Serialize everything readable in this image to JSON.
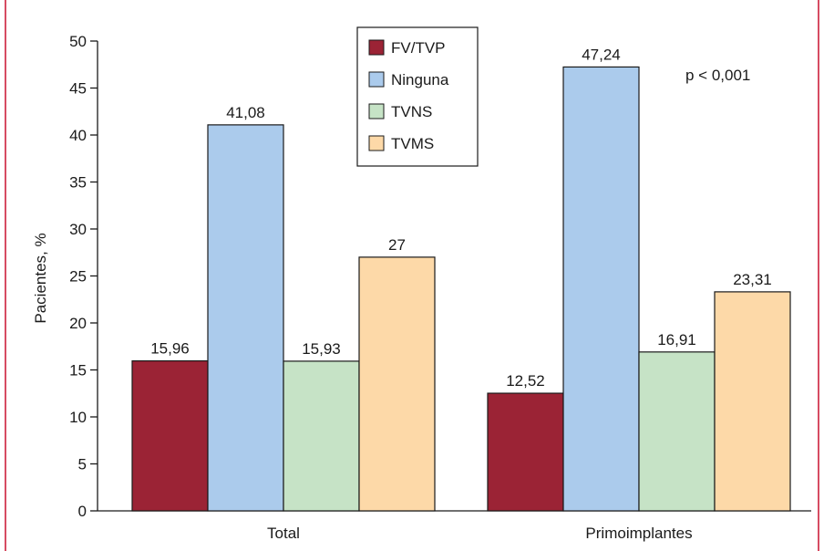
{
  "chart_data": {
    "type": "bar",
    "title": "",
    "xlabel": "",
    "ylabel": "Pacientes, %",
    "ylim": [
      0,
      50
    ],
    "yticks": [
      0,
      5,
      10,
      15,
      20,
      25,
      30,
      35,
      40,
      45,
      50
    ],
    "categories": [
      "Total",
      "Primoimplantes"
    ],
    "series": [
      {
        "name": "FV/TVP",
        "color": "#9b2335",
        "values": [
          15.96,
          12.52
        ],
        "labels": [
          "15,96",
          "12,52"
        ]
      },
      {
        "name": "Ninguna",
        "color": "#abcbec",
        "values": [
          41.08,
          47.24
        ],
        "labels": [
          "41,08",
          "47,24"
        ]
      },
      {
        "name": "TVNS",
        "color": "#c6e3c6",
        "values": [
          15.93,
          16.91
        ],
        "labels": [
          "15,93",
          "16,91"
        ]
      },
      {
        "name": "TVMS",
        "color": "#fdd9a8",
        "values": [
          27,
          23.31
        ],
        "labels": [
          "27",
          "23,31"
        ]
      }
    ],
    "legend_position": "top-center",
    "annotations": [
      "p < 0,001"
    ],
    "grid": false
  },
  "colors": {
    "frame_border": "#c8102e",
    "axis": "#1a1a1a",
    "bar_outline": "#1a1a1a"
  }
}
